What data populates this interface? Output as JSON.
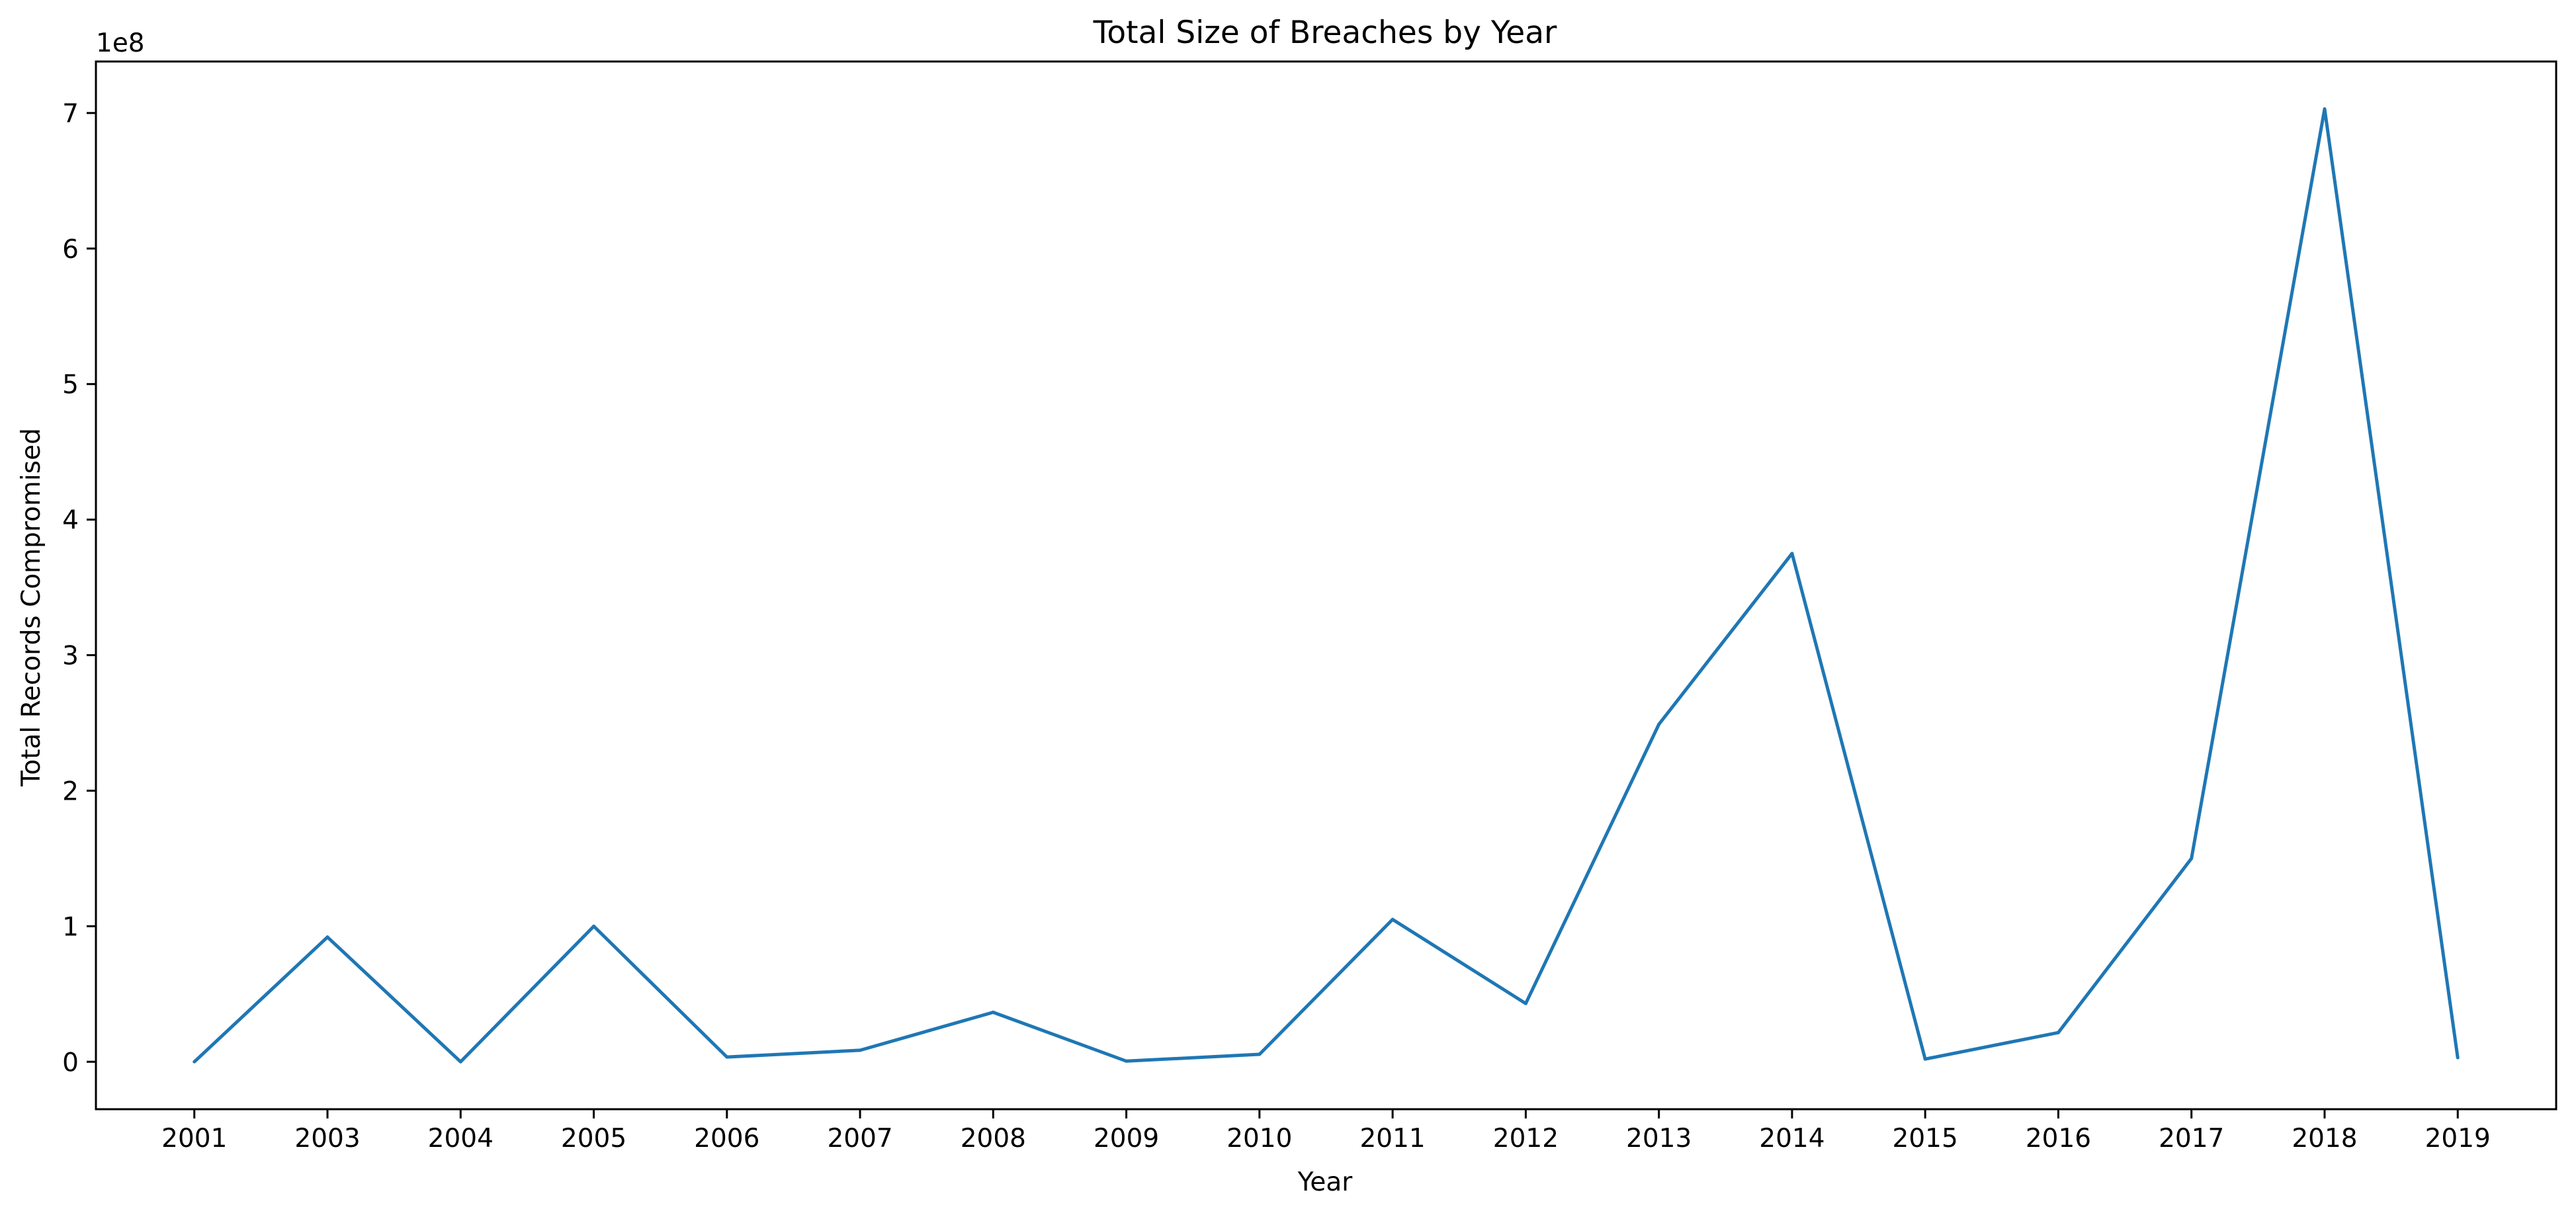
{
  "chart_data": {
    "type": "line",
    "title": "Total Size of Breaches by Year",
    "xlabel": "Year",
    "ylabel": "Total Records Compromised",
    "y_offset_label": "1e8",
    "categories": [
      "2001",
      "2003",
      "2004",
      "2005",
      "2006",
      "2007",
      "2008",
      "2009",
      "2010",
      "2011",
      "2012",
      "2013",
      "2014",
      "2015",
      "2016",
      "2017",
      "2018",
      "2019"
    ],
    "values": [
      0.0,
      0.92,
      0.0,
      1.0,
      0.035,
      0.085,
      0.365,
      0.005,
      0.055,
      1.05,
      0.43,
      2.49,
      3.75,
      0.02,
      0.215,
      1.5,
      7.03,
      0.03
    ],
    "y_scale_factor": 100000000,
    "ylim": [
      -0.35,
      7.38
    ],
    "yticks": [
      0,
      1,
      2,
      3,
      4,
      5,
      6,
      7
    ],
    "grid": false,
    "legend": "none",
    "line_color": "#1f77b4"
  }
}
